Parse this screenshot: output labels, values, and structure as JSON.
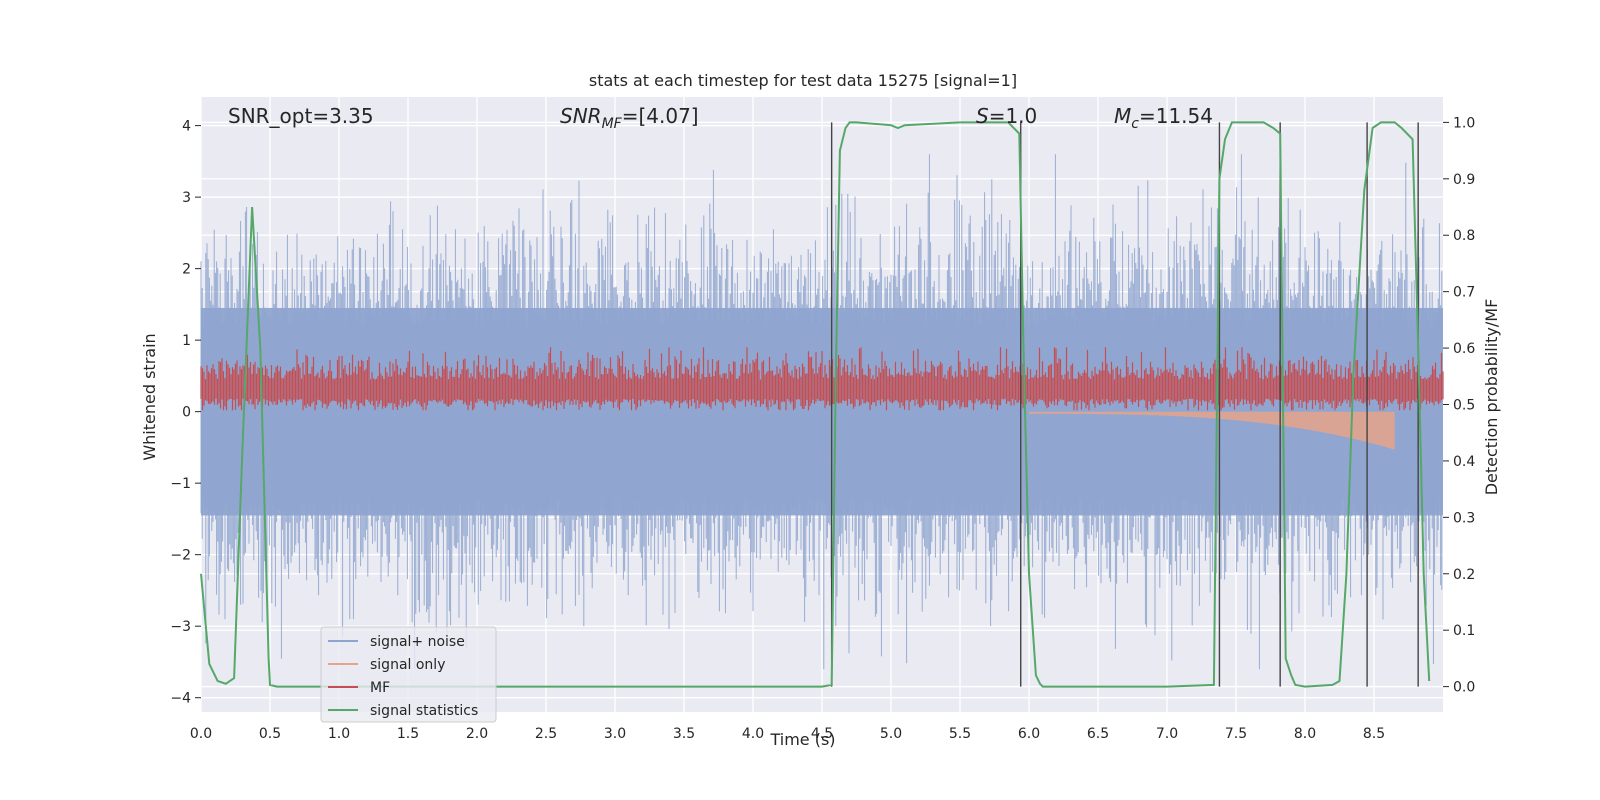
{
  "chart_data": {
    "type": "line",
    "title": "stats at each timestep for test data 15275 [signal=1]",
    "xlabel": "Time (s)",
    "ylabel": "Whitened strain",
    "y2label": "Detection probability/MF",
    "xlim": [
      0,
      9
    ],
    "ylim": [
      -4.2,
      4.4
    ],
    "y2lim": [
      -0.045,
      1.045
    ],
    "x_ticks": [
      "0.0",
      "0.5",
      "1.0",
      "1.5",
      "2.0",
      "2.5",
      "3.0",
      "3.5",
      "4.0",
      "4.5",
      "5.0",
      "5.5",
      "6.0",
      "6.5",
      "7.0",
      "7.5",
      "8.0",
      "8.5"
    ],
    "y_ticks": [
      "−4",
      "−3",
      "−2",
      "−1",
      "0",
      "1",
      "2",
      "3",
      "4"
    ],
    "y2_ticks": [
      "0.0",
      "0.1",
      "0.2",
      "0.3",
      "0.4",
      "0.5",
      "0.6",
      "0.7",
      "0.8",
      "0.9",
      "1.0"
    ],
    "annotations": {
      "snr_opt": "SNR_opt=3.35",
      "snr_mf_main": "SNR",
      "snr_mf_sub": "MF",
      "snr_mf_value": "=[4.07]",
      "s_main": "S",
      "s_value": "=1.0",
      "mc_main": "M",
      "mc_sub": "c",
      "mc_value": "=11.54"
    },
    "legend": {
      "position": "lower-left",
      "entries": [
        {
          "label": "signal+ noise",
          "color": "#8fa5cf"
        },
        {
          "label": "signal only",
          "color": "#e7a38a"
        },
        {
          "label": "MF",
          "color": "#c44e52"
        },
        {
          "label": "signal statistics",
          "color": "#55a868"
        }
      ]
    },
    "vertical_markers": [
      4.57,
      5.94,
      7.38,
      7.82,
      8.45,
      8.82
    ],
    "series": [
      {
        "name": "signal statistics",
        "axis": "right",
        "color": "#55a868",
        "x": [
          0.0,
          0.06,
          0.12,
          0.18,
          0.24,
          0.3,
          0.37,
          0.43,
          0.49,
          0.5,
          0.55,
          0.6,
          1.0,
          2.0,
          3.0,
          4.0,
          4.5,
          4.57,
          4.6,
          4.63,
          4.67,
          4.7,
          4.75,
          5.0,
          5.05,
          5.1,
          5.5,
          5.85,
          5.93,
          5.96,
          6.0,
          6.05,
          6.08,
          6.1,
          6.5,
          7.0,
          7.34,
          7.38,
          7.42,
          7.47,
          7.52,
          7.7,
          7.77,
          7.82,
          7.86,
          7.9,
          7.93,
          8.0,
          8.2,
          8.25,
          8.3,
          8.35,
          8.43,
          8.49,
          8.55,
          8.65,
          8.7,
          8.78,
          8.82,
          8.86,
          8.9
        ],
        "values": [
          0.2,
          0.04,
          0.01,
          0.005,
          0.015,
          0.42,
          0.85,
          0.6,
          0.05,
          0.003,
          0.0,
          0.0,
          0.0,
          0.0,
          0.0,
          0.0,
          0.0,
          0.003,
          0.55,
          0.95,
          0.99,
          1.0,
          1.0,
          0.995,
          0.99,
          0.995,
          1.0,
          1.0,
          0.98,
          0.6,
          0.2,
          0.02,
          0.005,
          0.0,
          0.0,
          0.0,
          0.003,
          0.9,
          0.97,
          1.0,
          1.0,
          1.0,
          0.99,
          0.98,
          0.05,
          0.02,
          0.003,
          0.0,
          0.003,
          0.01,
          0.2,
          0.55,
          0.88,
          0.99,
          1.0,
          1.0,
          0.99,
          0.97,
          0.6,
          0.2,
          0.01
        ]
      },
      {
        "name": "signal+ noise",
        "axis": "left",
        "color": "#8fa5cf",
        "description_values": "dense noise band, envelope approx ±1.5 with spikes up to ±3.6"
      },
      {
        "name": "MF",
        "axis": "left",
        "color": "#c44e52",
        "description_values": "dense positive band, approx 0.05 to 0.9"
      },
      {
        "name": "signal only",
        "axis": "left",
        "color": "#e7a38a",
        "description_values": "chirp growing in amplitude from ~6.0 s to 8.65 s, reaching about -0.5"
      }
    ]
  }
}
